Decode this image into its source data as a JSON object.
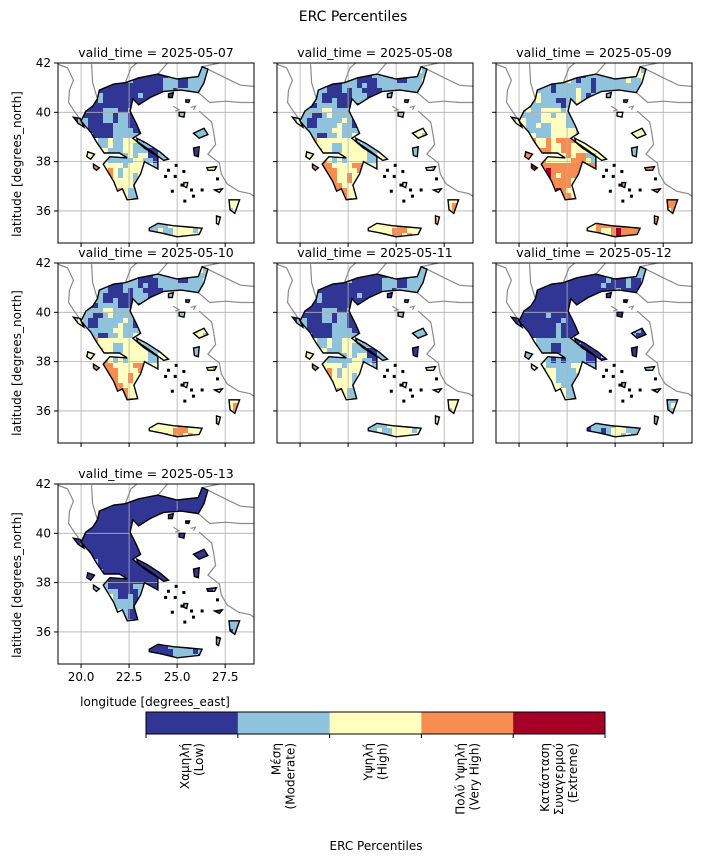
{
  "figure": {
    "title": "ERC Percentiles",
    "ylabel": "latitude [degrees_north]",
    "xlabel": "longitude [degrees_east]"
  },
  "axes": {
    "xlim": [
      18.8,
      29.0
    ],
    "ylim": [
      34.7,
      42.0
    ],
    "xticks": [
      "20.0",
      "22.5",
      "25.0",
      "27.5"
    ],
    "xtick_values": [
      20.0,
      22.5,
      25.0,
      27.5
    ],
    "yticks": [
      "36",
      "38",
      "40",
      "42"
    ],
    "ytick_values": [
      36,
      38,
      40,
      42
    ],
    "grid": true
  },
  "panels": [
    {
      "title": "valid_time = 2025-05-07",
      "regime": 2
    },
    {
      "title": "valid_time = 2025-05-08",
      "regime": 3
    },
    {
      "title": "valid_time = 2025-05-09",
      "regime": 4
    },
    {
      "title": "valid_time = 2025-05-10",
      "regime": 3
    },
    {
      "title": "valid_time = 2025-05-11",
      "regime": 2
    },
    {
      "title": "valid_time = 2025-05-12",
      "regime": 1
    },
    {
      "title": "valid_time = 2025-05-13",
      "regime": 0
    }
  ],
  "colorbar": {
    "label": "ERC Percentiles",
    "categories": [
      {
        "lines": [
          "Χαμηλή",
          "(Low)"
        ],
        "color": "#313695"
      },
      {
        "lines": [
          "Μέση",
          "(Moderate)"
        ],
        "color": "#8fc3dd"
      },
      {
        "lines": [
          "Υψηλή",
          "(High)"
        ],
        "color": "#ffffbf"
      },
      {
        "lines": [
          "Πολύ Υψηλή",
          "(Very High)"
        ],
        "color": "#f88d52"
      },
      {
        "lines": [
          "Κατάσταση",
          "Συναγερμού",
          "(Extreme)"
        ],
        "color": "#a50026"
      }
    ]
  },
  "chart_data": {
    "type": "heatmap",
    "title": "ERC Percentiles",
    "xlabel": "longitude [degrees_east]",
    "ylabel": "latitude [degrees_north]",
    "xlim": [
      18.8,
      29.0
    ],
    "ylim": [
      34.7,
      42.0
    ],
    "facets": [
      "valid_time = 2025-05-07",
      "valid_time = 2025-05-08",
      "valid_time = 2025-05-09",
      "valid_time = 2025-05-10",
      "valid_time = 2025-05-11",
      "valid_time = 2025-05-12",
      "valid_time = 2025-05-13"
    ],
    "categories": [
      "Χαμηλή (Low)",
      "Μέση (Moderate)",
      "Υψηλή (High)",
      "Πολύ Υψηλή (Very High)",
      "Κατάσταση Συναγερμού (Extreme)"
    ]
  }
}
